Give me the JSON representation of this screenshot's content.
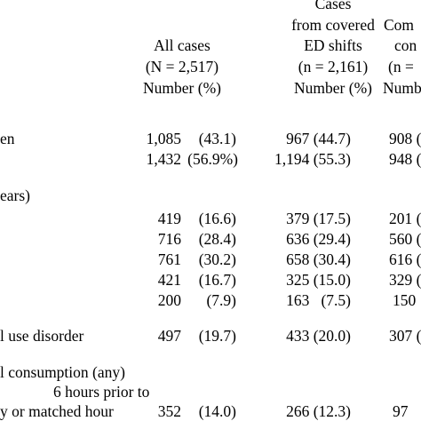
{
  "columns": [
    {
      "title_lines": [
        "",
        "All cases"
      ],
      "n_line": "(N = 2,517)",
      "unit": "Number (%)"
    },
    {
      "title_lines": [
        "Cases",
        "from covered",
        "ED shifts"
      ],
      "n_line": "(n = 2,161)",
      "unit": "Number (%)"
    },
    {
      "title_lines": [
        "Com",
        "con"
      ],
      "n_line": "(n =",
      "unit": "Numb"
    }
  ],
  "rows": [
    {
      "label": "en",
      "cells": [
        "1,085",
        "(43.1)",
        "967 (44.7)",
        "908 ("
      ]
    },
    {
      "label": "",
      "cells": [
        "1,432",
        "(56.9%)",
        "1,194 (55.3)",
        "948 ("
      ]
    },
    {
      "label": "ears)",
      "cells": [
        "",
        "",
        "",
        ""
      ]
    },
    {
      "label": "",
      "cells": [
        "419",
        "(16.6)",
        "379 (17.5)",
        "201 ("
      ]
    },
    {
      "label": "",
      "cells": [
        "716",
        "(28.4)",
        "636 (29.4)",
        "560 ("
      ]
    },
    {
      "label": "",
      "cells": [
        "761",
        "(30.2)",
        "658 (30.4)",
        "616 ("
      ]
    },
    {
      "label": "",
      "cells": [
        "421",
        "(16.7)",
        "325 (15.0)",
        "329 ("
      ]
    },
    {
      "label": "",
      "cells": [
        "200",
        "(7.9)",
        "163   (7.5)",
        "150"
      ]
    },
    {
      "label": "l use disorder",
      "cells": [
        "497",
        "(19.7)",
        "433 (20.0)",
        "307 ("
      ]
    },
    {
      "label": "l consumption (any)",
      "cells": [
        "",
        "",
        "",
        ""
      ]
    },
    {
      "label": "6 hours prior to",
      "cells": [
        "",
        "",
        "",
        ""
      ]
    },
    {
      "label": "y or matched hour",
      "cells": [
        "352",
        "(14.0)",
        "266 (12.3)",
        "97"
      ]
    }
  ]
}
